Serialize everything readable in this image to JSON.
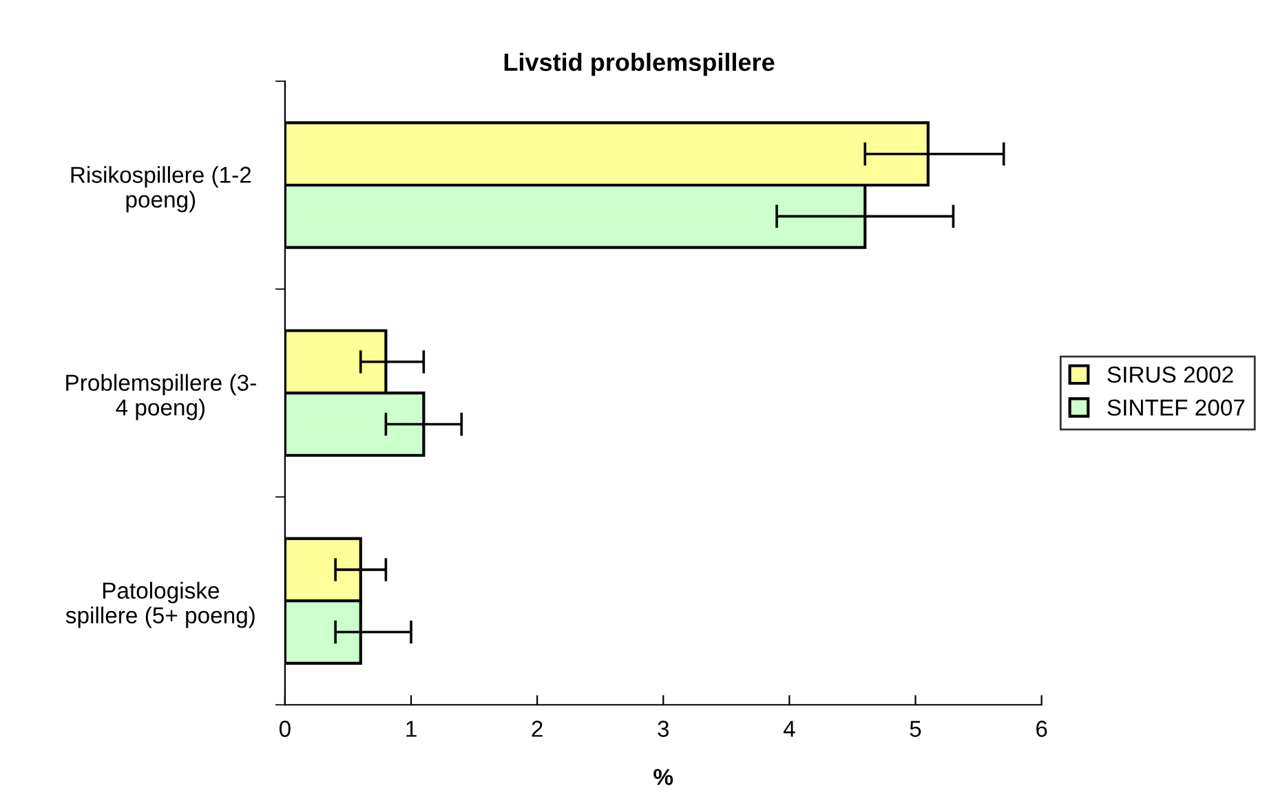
{
  "chart_data": {
    "type": "bar",
    "orientation": "horizontal",
    "title": "Livstid problemspillere",
    "xlabel": "%",
    "categories": [
      "Risikospillere (1-2\npoeng)",
      "Problemspillere (3-\n4 poeng)",
      "Patologiske\nspillere (5+ poeng)"
    ],
    "series": [
      {
        "name": "SIRUS 2002",
        "color": "#ffff99",
        "values": [
          5.1,
          0.8,
          0.6
        ],
        "errors": [
          [
            4.6,
            5.7
          ],
          [
            0.6,
            1.1
          ],
          [
            0.4,
            0.8
          ]
        ]
      },
      {
        "name": "SINTEF 2007",
        "color": "#ccffcc",
        "values": [
          4.6,
          1.1,
          0.6
        ],
        "errors": [
          [
            3.9,
            5.3
          ],
          [
            0.8,
            1.4
          ],
          [
            0.4,
            1.0
          ]
        ]
      }
    ],
    "xlim": [
      0,
      6
    ],
    "xticks": [
      0,
      1,
      2,
      3,
      4,
      5,
      6
    ],
    "grid": false,
    "legend": "right"
  }
}
